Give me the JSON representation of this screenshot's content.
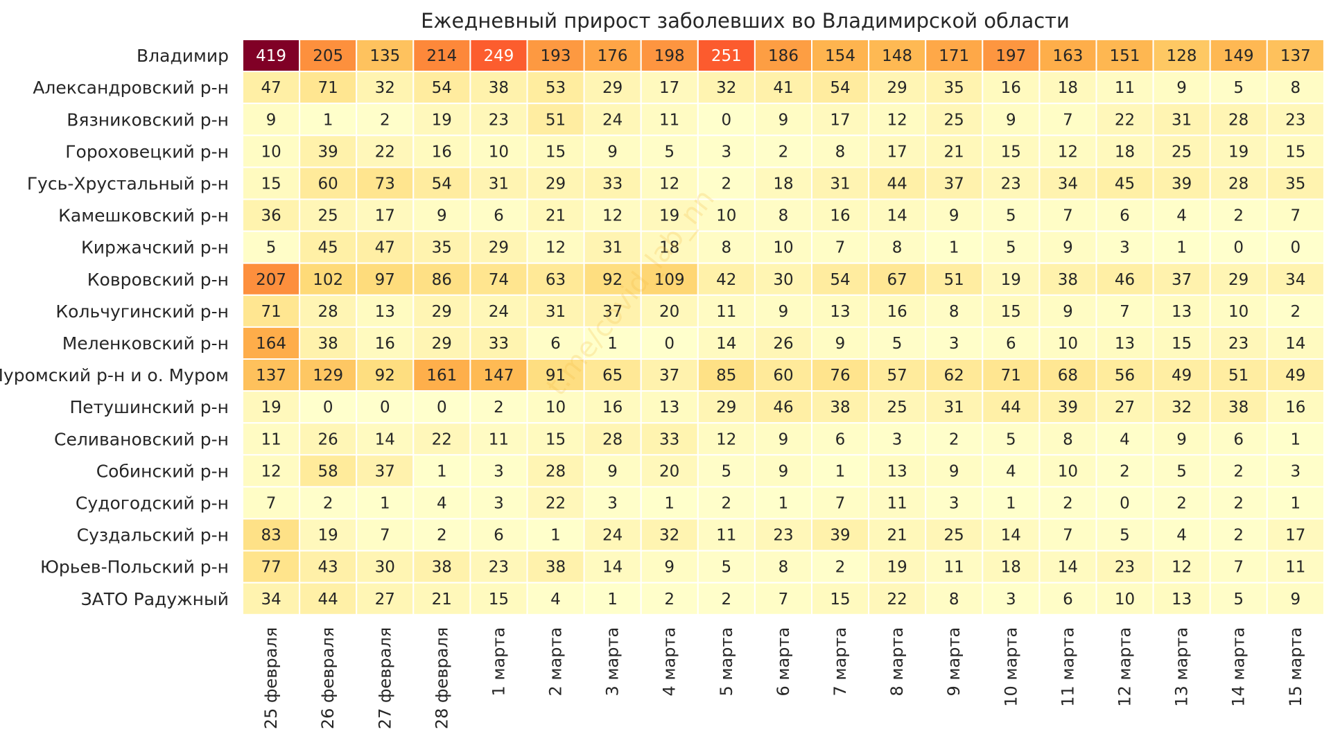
{
  "chart_data": {
    "type": "heatmap",
    "title": "Ежедневный прирост заболевших во Владимирской области",
    "columns": [
      "25 февраля",
      "26 февраля",
      "27 февраля",
      "28 февраля",
      "1 марта",
      "2 марта",
      "3 марта",
      "4 марта",
      "5 марта",
      "6 марта",
      "7 марта",
      "8 марта",
      "9 марта",
      "10 марта",
      "11 марта",
      "12 марта",
      "13 марта",
      "14 марта",
      "15 марта"
    ],
    "rows": [
      "Владимир",
      "Александровский р-н",
      "Вязниковский р-н",
      "Гороховецкий р-н",
      "Гусь-Хрустальный р-н",
      "Камешковский р-н",
      "Киржачский р-н",
      "Ковровский р-н",
      "Кольчугинский р-н",
      "Меленковский р-н",
      "Муромский р-н и о. Муром",
      "Петушинский р-н",
      "Селивановский р-н",
      "Собинский р-н",
      "Судогодский р-н",
      "Суздальский р-н",
      "Юрьев-Польский р-н",
      "ЗАТО Радужный"
    ],
    "values": [
      [
        419,
        205,
        135,
        214,
        249,
        193,
        176,
        198,
        251,
        186,
        154,
        148,
        171,
        197,
        163,
        151,
        128,
        149,
        137
      ],
      [
        47,
        71,
        32,
        54,
        38,
        53,
        29,
        17,
        32,
        41,
        54,
        29,
        35,
        16,
        18,
        11,
        9,
        5,
        8
      ],
      [
        9,
        1,
        2,
        19,
        23,
        51,
        24,
        11,
        0,
        9,
        17,
        12,
        25,
        9,
        7,
        22,
        31,
        28,
        23
      ],
      [
        10,
        39,
        22,
        16,
        10,
        15,
        9,
        5,
        3,
        2,
        8,
        17,
        21,
        15,
        12,
        18,
        25,
        19,
        15
      ],
      [
        15,
        60,
        73,
        54,
        31,
        29,
        33,
        12,
        2,
        18,
        31,
        44,
        37,
        23,
        34,
        45,
        39,
        28,
        35
      ],
      [
        36,
        25,
        17,
        9,
        6,
        21,
        12,
        19,
        10,
        8,
        16,
        14,
        9,
        5,
        7,
        6,
        4,
        2,
        7
      ],
      [
        5,
        45,
        47,
        35,
        29,
        12,
        31,
        18,
        8,
        10,
        7,
        8,
        1,
        5,
        9,
        3,
        1,
        0,
        0
      ],
      [
        207,
        102,
        97,
        86,
        74,
        63,
        92,
        109,
        42,
        30,
        54,
        67,
        51,
        19,
        38,
        46,
        37,
        29,
        34
      ],
      [
        71,
        28,
        13,
        29,
        24,
        31,
        37,
        20,
        11,
        9,
        13,
        16,
        8,
        15,
        9,
        7,
        13,
        10,
        2
      ],
      [
        164,
        38,
        16,
        29,
        33,
        6,
        1,
        0,
        14,
        26,
        9,
        5,
        3,
        6,
        10,
        13,
        15,
        23,
        14
      ],
      [
        137,
        129,
        92,
        161,
        147,
        91,
        65,
        37,
        85,
        60,
        76,
        57,
        62,
        71,
        68,
        56,
        49,
        51,
        49
      ],
      [
        19,
        0,
        0,
        0,
        2,
        10,
        16,
        13,
        29,
        46,
        38,
        25,
        31,
        44,
        39,
        27,
        32,
        38,
        16
      ],
      [
        11,
        26,
        14,
        22,
        11,
        15,
        28,
        33,
        12,
        9,
        6,
        3,
        2,
        5,
        8,
        4,
        9,
        6,
        1
      ],
      [
        12,
        58,
        37,
        1,
        3,
        28,
        9,
        20,
        5,
        9,
        1,
        13,
        9,
        4,
        10,
        2,
        5,
        2,
        3
      ],
      [
        7,
        2,
        1,
        4,
        3,
        22,
        3,
        1,
        2,
        1,
        7,
        11,
        3,
        1,
        2,
        0,
        2,
        2,
        1
      ],
      [
        83,
        19,
        7,
        2,
        6,
        1,
        24,
        32,
        11,
        23,
        39,
        21,
        25,
        14,
        7,
        5,
        4,
        2,
        17
      ],
      [
        77,
        43,
        30,
        38,
        23,
        38,
        14,
        9,
        5,
        8,
        2,
        19,
        11,
        18,
        14,
        23,
        12,
        7,
        11
      ],
      [
        34,
        44,
        27,
        21,
        15,
        4,
        1,
        2,
        2,
        7,
        15,
        22,
        8,
        3,
        6,
        10,
        13,
        5,
        9
      ]
    ],
    "vmin": 0,
    "vmax": 419,
    "colormap": "YlOrRd",
    "watermark": "t.me/covid_lab_nn"
  }
}
